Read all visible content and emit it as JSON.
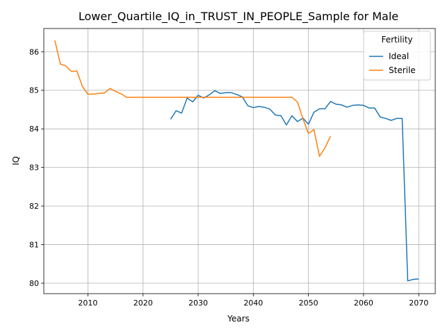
{
  "chart_data": {
    "type": "line",
    "title": "Lower_Quartile_IQ_in_TRUST_IN_PEOPLE_Sample for Male",
    "xlabel": "Years",
    "ylabel": "IQ",
    "xlim": [
      2002,
      2073
    ],
    "ylim": [
      79.73,
      86.6
    ],
    "xticks": [
      2010,
      2020,
      2030,
      2040,
      2050,
      2060,
      2070
    ],
    "yticks": [
      80,
      81,
      82,
      83,
      84,
      85,
      86
    ],
    "grid": true,
    "legend": {
      "title": "Fertility",
      "placement": "top-right"
    },
    "series": [
      {
        "name": "Ideal",
        "color": "#1f77b4",
        "x": [
          2025,
          2026,
          2027,
          2028,
          2029,
          2030,
          2031,
          2032,
          2033,
          2034,
          2035,
          2036,
          2037,
          2038,
          2039,
          2040,
          2041,
          2042,
          2043,
          2044,
          2045,
          2046,
          2047,
          2048,
          2049,
          2050,
          2051,
          2052,
          2053,
          2054,
          2055,
          2056,
          2057,
          2058,
          2059,
          2060,
          2061,
          2062,
          2063,
          2064,
          2065,
          2066,
          2067,
          2068,
          2069,
          2070
        ],
        "y": [
          84.25,
          84.47,
          84.41,
          84.8,
          84.7,
          84.87,
          84.8,
          84.88,
          84.99,
          84.92,
          84.94,
          84.94,
          84.89,
          84.83,
          84.6,
          84.55,
          84.58,
          84.56,
          84.51,
          84.36,
          84.34,
          84.1,
          84.34,
          84.19,
          84.28,
          84.12,
          84.43,
          84.52,
          84.52,
          84.71,
          84.64,
          84.62,
          84.56,
          84.61,
          84.62,
          84.61,
          84.54,
          84.54,
          84.31,
          84.27,
          84.22,
          84.27,
          84.27,
          80.06,
          80.1,
          80.11
        ]
      },
      {
        "name": "Sterile",
        "color": "#ff7f0e",
        "x": [
          2004,
          2005,
          2006,
          2007,
          2008,
          2009,
          2010,
          2011,
          2012,
          2013,
          2014,
          2015,
          2016,
          2017,
          2018,
          2019,
          2020,
          2021,
          2022,
          2023,
          2024,
          2025,
          2026,
          2027,
          2028,
          2029,
          2030,
          2031,
          2032,
          2033,
          2034,
          2035,
          2036,
          2037,
          2038,
          2039,
          2040,
          2041,
          2042,
          2043,
          2044,
          2045,
          2046,
          2047,
          2048,
          2049,
          2050,
          2051,
          2052,
          2053,
          2054
        ],
        "y": [
          86.29,
          85.68,
          85.63,
          85.49,
          85.5,
          85.1,
          84.9,
          84.9,
          84.92,
          84.93,
          85.05,
          84.97,
          84.91,
          84.82,
          84.82,
          84.82,
          84.82,
          84.82,
          84.82,
          84.82,
          84.82,
          84.82,
          84.82,
          84.82,
          84.82,
          84.82,
          84.82,
          84.82,
          84.82,
          84.82,
          84.82,
          84.82,
          84.82,
          84.82,
          84.82,
          84.82,
          84.82,
          84.82,
          84.82,
          84.82,
          84.82,
          84.82,
          84.82,
          84.82,
          84.7,
          84.26,
          83.88,
          83.98,
          83.29,
          83.51,
          83.81
        ]
      }
    ]
  }
}
